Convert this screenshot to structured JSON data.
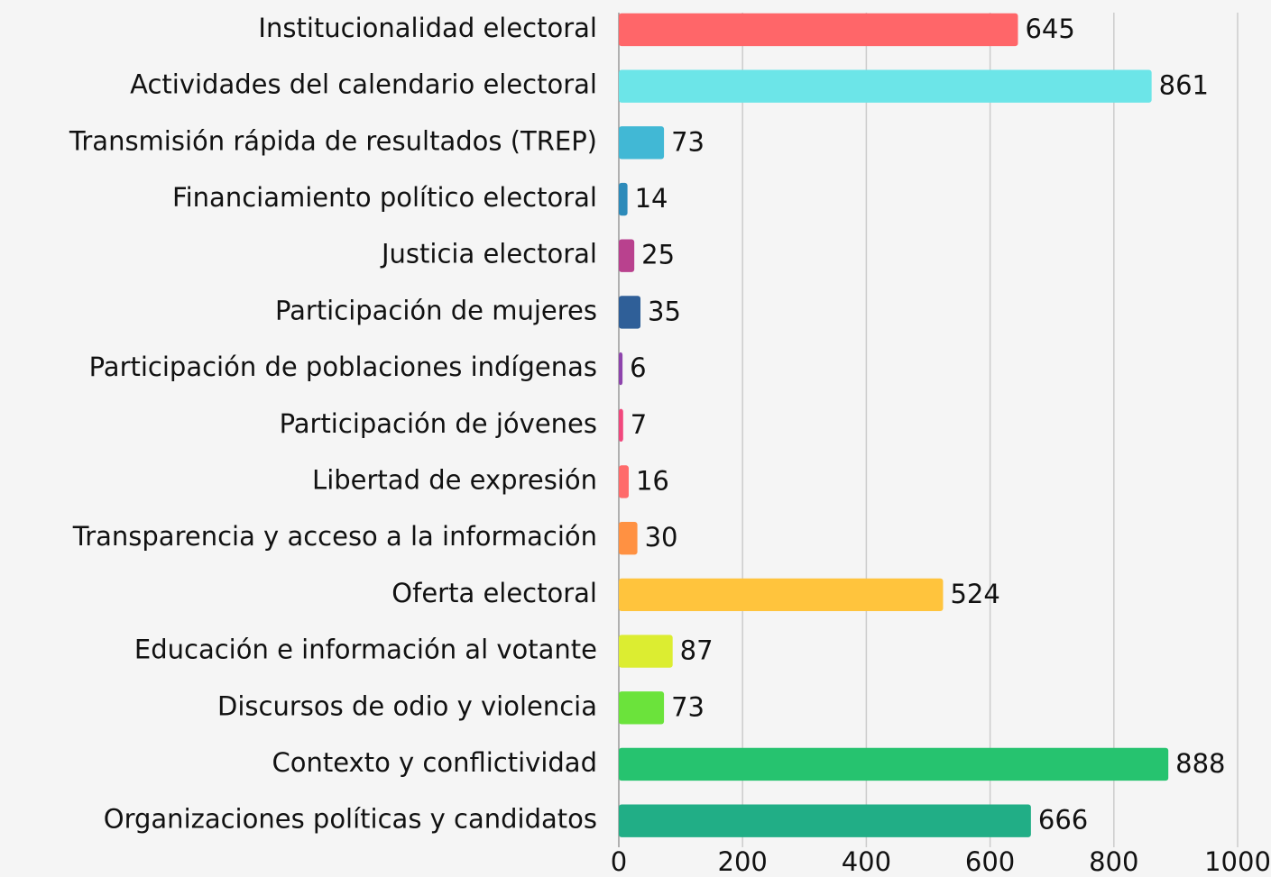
{
  "chart_data": {
    "type": "barh",
    "categories": [
      "Institucionalidad electoral",
      "Actividades del calendario electoral",
      "Transmisión rápida de resultados (TREP)",
      "Financiamiento político electoral",
      "Justicia electoral",
      "Participación de mujeres",
      "Participación de poblaciones indígenas",
      "Participación de jóvenes",
      "Libertad de expresión",
      "Transparencia y acceso a la información",
      "Oferta electoral",
      "Educación e información al votante",
      "Discursos de odio y violencia",
      "Contexto y conflictividad",
      "Organizaciones políticas y candidatos"
    ],
    "values": [
      645,
      861,
      73,
      14,
      25,
      35,
      6,
      7,
      16,
      30,
      524,
      87,
      73,
      888,
      666
    ],
    "colors": [
      "#ff6669",
      "#6ce5e8",
      "#41b8d5",
      "#2d8bba",
      "#b9418e",
      "#2f5f98",
      "#8e44ad",
      "#f1487d",
      "#ff6b6b",
      "#ff9142",
      "#ffc43d",
      "#dced31",
      "#6be33b",
      "#26c36f",
      "#21ae86"
    ],
    "xlim": [
      0,
      1000
    ],
    "xticks": [
      0,
      200,
      400,
      600,
      800,
      1000
    ],
    "grid": true
  }
}
